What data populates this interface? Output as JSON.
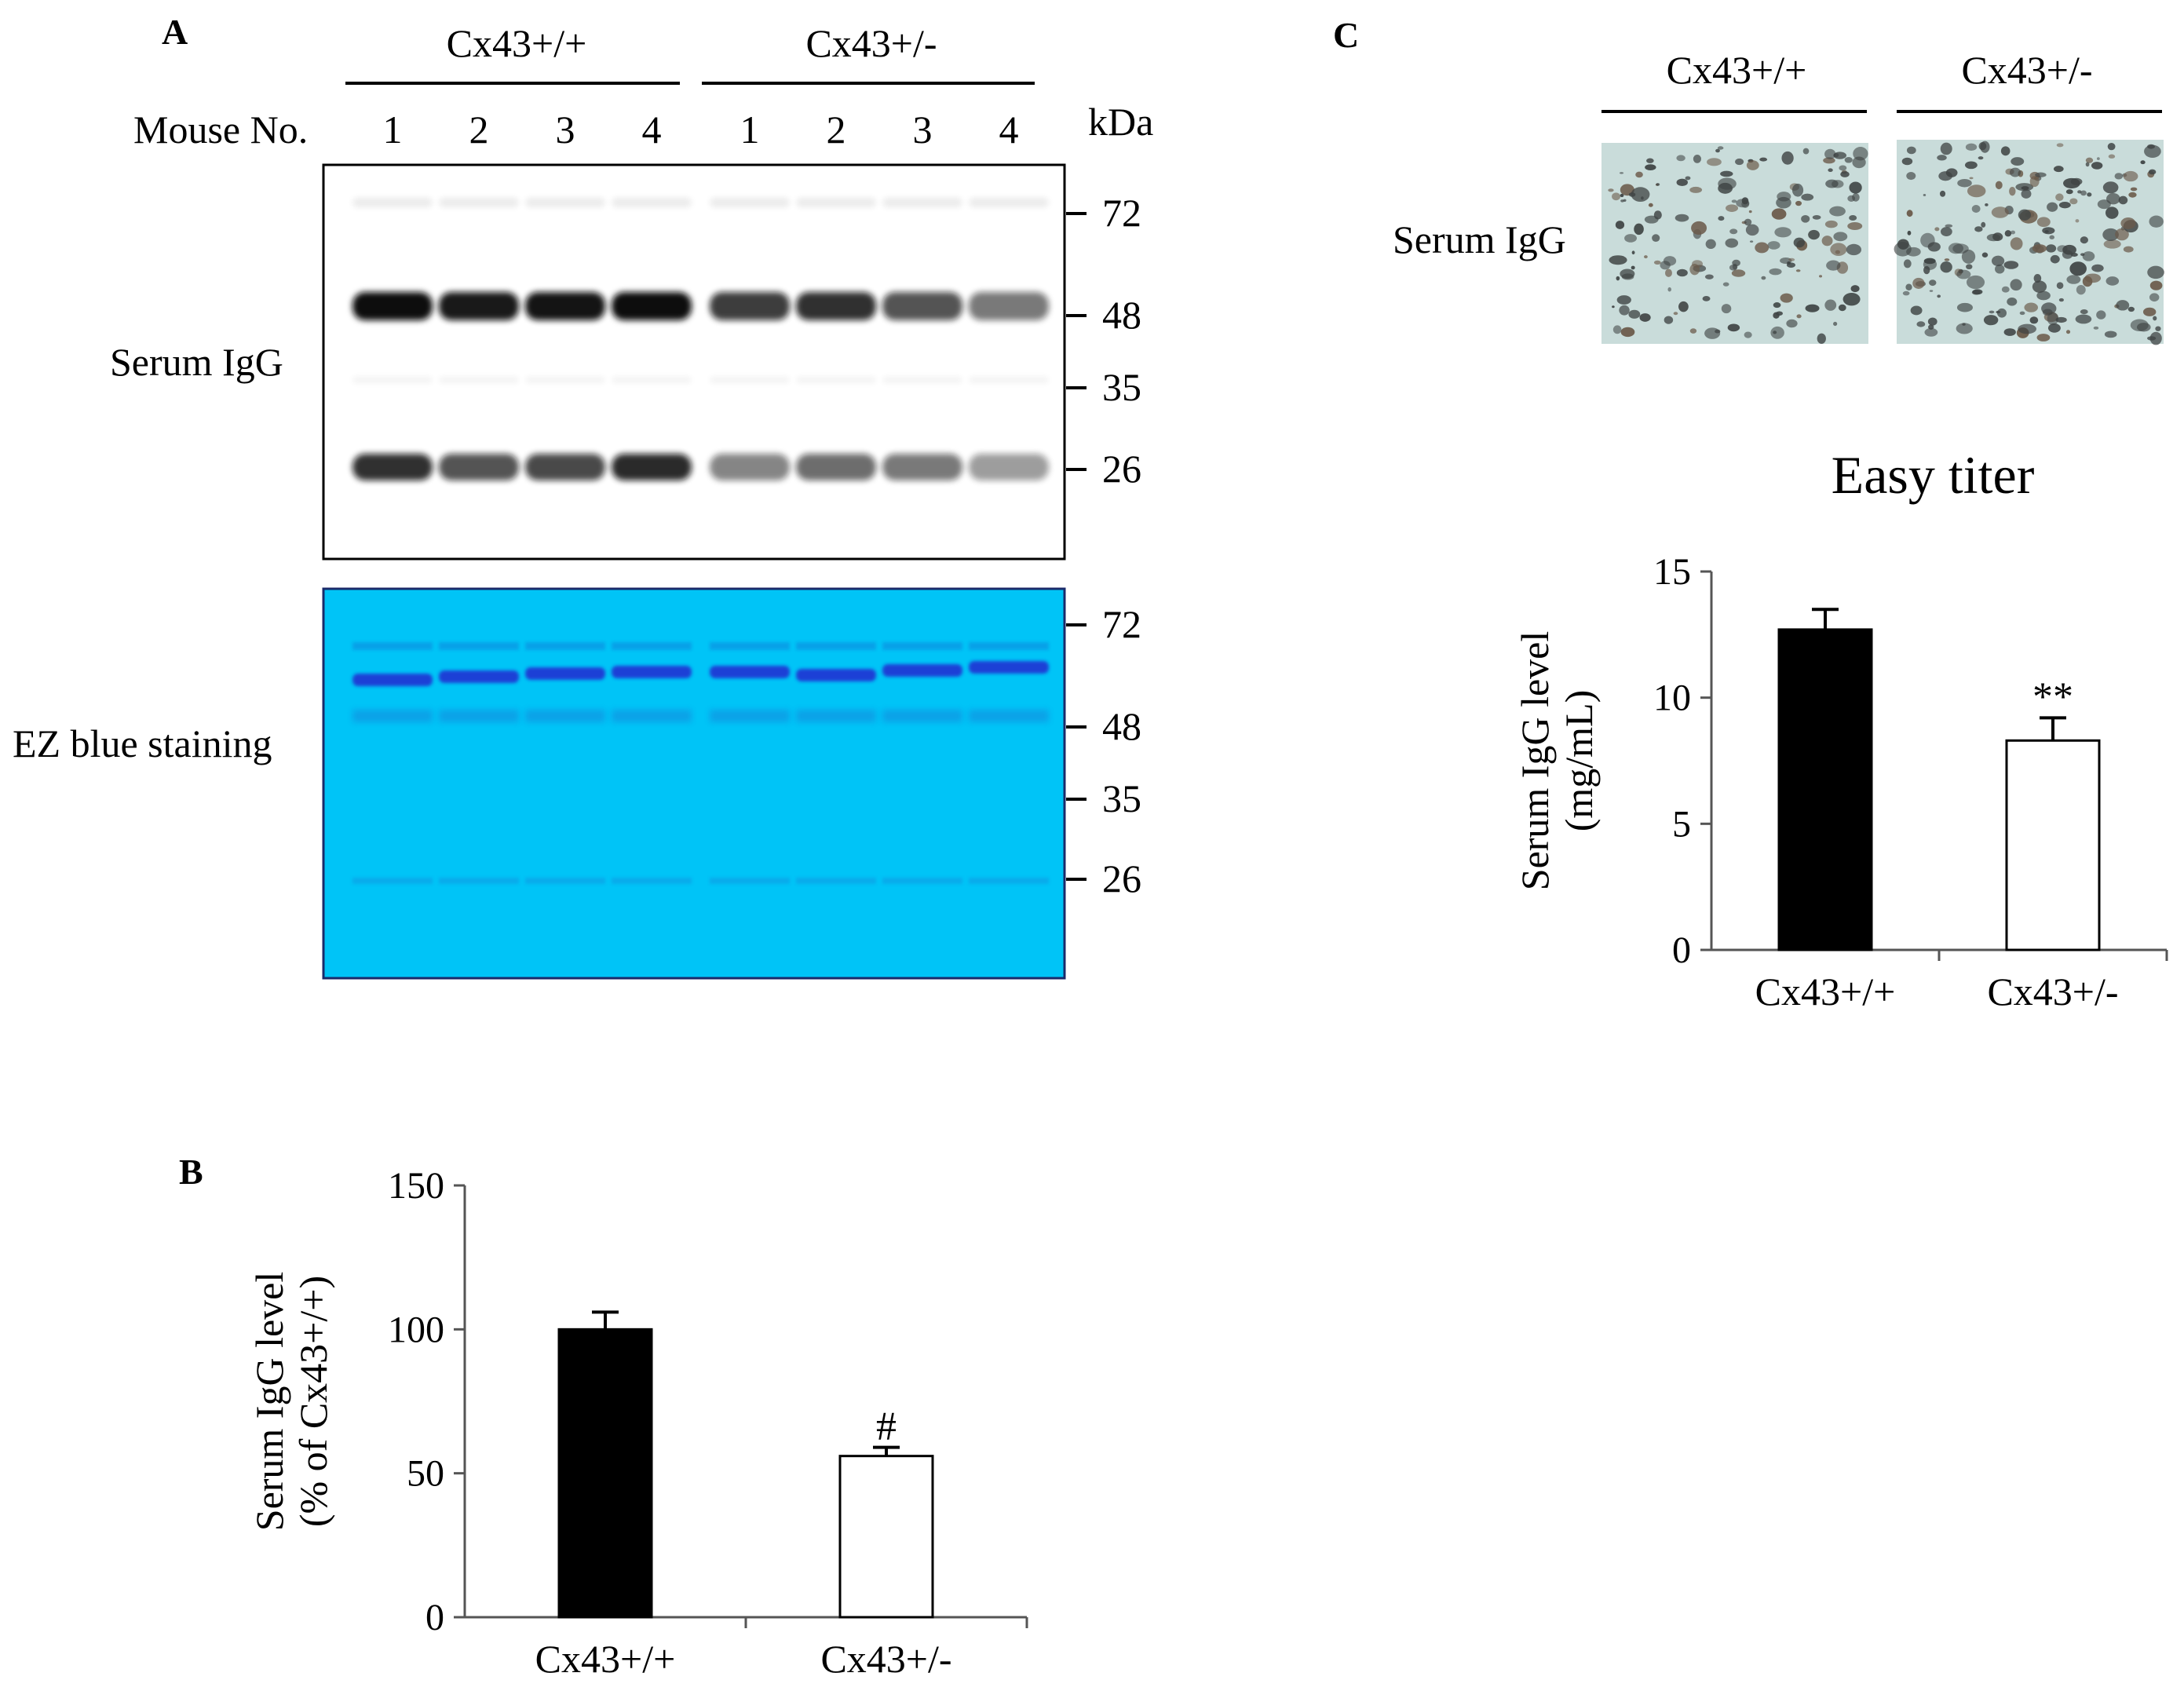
{
  "panel_a": {
    "label": "A",
    "group_labels": [
      "Cx43+/+",
      "Cx43+/-"
    ],
    "mouse_no_label": "Mouse No.",
    "lane_numbers": [
      "1",
      "2",
      "3",
      "4",
      "1",
      "2",
      "3",
      "4"
    ],
    "kda_label": "kDa",
    "blot_label": "Serum IgG",
    "stain_label": "EZ blue staining",
    "blot_markers": [
      "72",
      "48",
      "35",
      "26"
    ],
    "stain_markers": [
      "72",
      "48",
      "35",
      "26"
    ],
    "colors": {
      "stain_background": "#00c4f7",
      "stain_band": "#1f3fd6",
      "blot_band": "#111111"
    }
  },
  "panel_c": {
    "label": "C",
    "group_labels": [
      "Cx43+/+",
      "Cx43+/-"
    ],
    "image_row_label": "Serum IgG"
  },
  "chart_data": [
    {
      "panel": "B",
      "type": "bar",
      "title": "",
      "categories": [
        "Cx43+/+",
        "Cx43+/-"
      ],
      "values": [
        100,
        56
      ],
      "errors": [
        6,
        3
      ],
      "annotations": [
        "",
        "#"
      ],
      "bar_fill": [
        "#000000",
        "#ffffff"
      ],
      "ylabel_lines": [
        "Serum IgG level",
        "(% of Cx43+/+)"
      ],
      "ylim": [
        0,
        150
      ],
      "yticks": [
        "0",
        "50",
        "100",
        "150"
      ],
      "grid": false
    },
    {
      "panel": "C",
      "type": "bar",
      "title": "Easy titer",
      "categories": [
        "Cx43+/+",
        "Cx43+/-"
      ],
      "values": [
        12.7,
        8.3
      ],
      "errors": [
        0.8,
        0.9
      ],
      "annotations": [
        "",
        "**"
      ],
      "bar_fill": [
        "#000000",
        "#ffffff"
      ],
      "ylabel_lines": [
        "Serum IgG level",
        "(mg/mL)"
      ],
      "ylim": [
        0,
        15
      ],
      "yticks": [
        "0",
        "5",
        "10",
        "15"
      ],
      "grid": false
    }
  ]
}
